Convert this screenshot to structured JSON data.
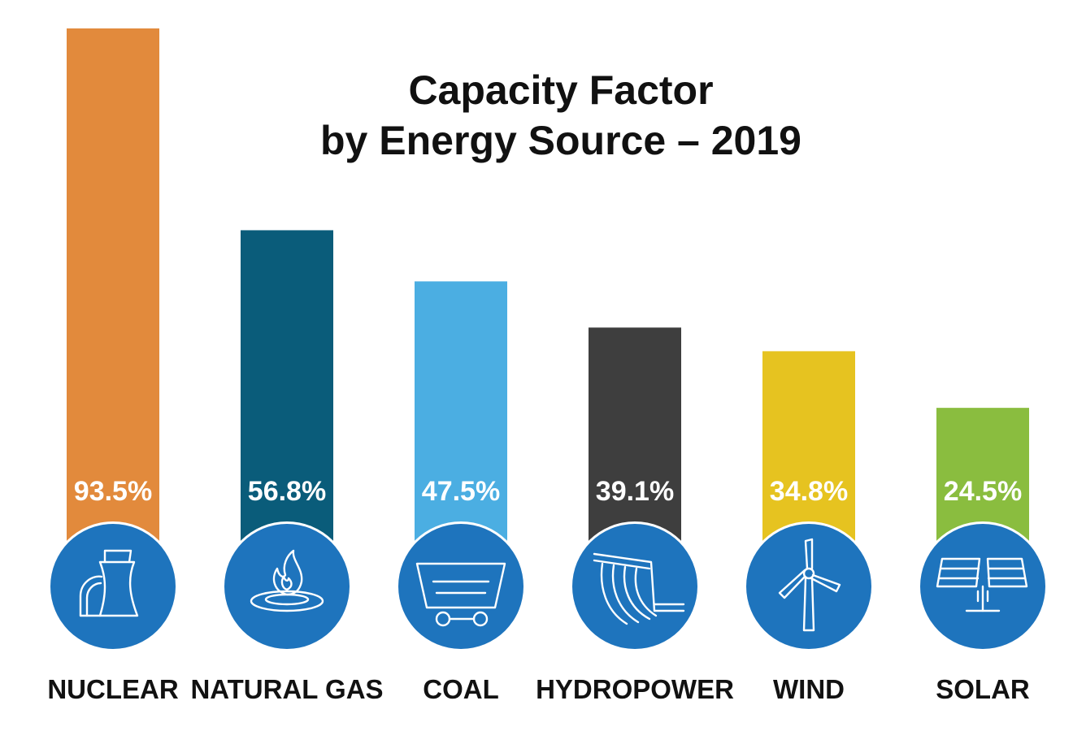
{
  "chart_data": {
    "type": "bar",
    "title_lines": [
      "Capacity Factor",
      "by Energy Source – 2019"
    ],
    "categories": [
      "NUCLEAR",
      "NATURAL GAS",
      "COAL",
      "HYDROPOWER",
      "WIND",
      "SOLAR"
    ],
    "values": [
      93.5,
      56.8,
      47.5,
      39.1,
      34.8,
      24.5
    ],
    "value_labels": [
      "93.5%",
      "56.8%",
      "47.5%",
      "39.1%",
      "34.8%",
      "24.5%"
    ],
    "colors": [
      "#E28A3C",
      "#0A5C7A",
      "#4BAEE2",
      "#3E3E3E",
      "#E6C320",
      "#8ABD3F"
    ],
    "icons": [
      "nuclear-plant-icon",
      "gas-flame-icon",
      "coal-cart-icon",
      "hydro-dam-icon",
      "wind-turbine-icon",
      "solar-panel-icon"
    ],
    "icon_circle_color": "#1E74BD",
    "ylim": [
      0,
      100
    ],
    "grid": false,
    "legend": "none"
  }
}
